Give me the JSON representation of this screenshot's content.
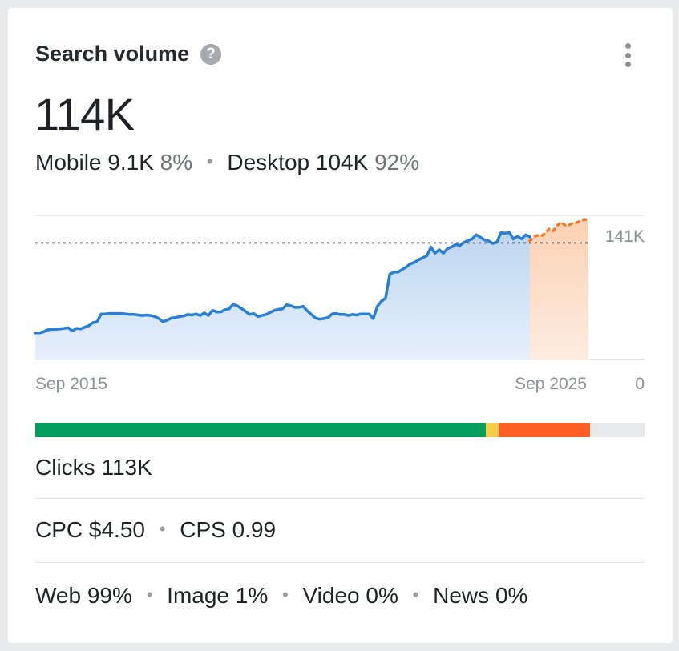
{
  "widget": {
    "title": "Search volume",
    "help_icon": "question-circle-icon",
    "menu_icon": "more-vertical-icon",
    "volume": "114K",
    "mobile_label": "Mobile",
    "mobile_value": "9.1K",
    "mobile_percent": "8%",
    "desktop_label": "Desktop",
    "desktop_value": "104K",
    "desktop_percent": "92%"
  },
  "chart_data": {
    "type": "area",
    "x_start_label": "Sep 2015",
    "x_end_label": "Sep 2025",
    "y_max_label": "141K",
    "y_min_label": "0",
    "ylim": [
      0,
      141000
    ],
    "reference_line": 114000,
    "series": [
      {
        "values": [
          26000,
          26000,
          27000,
          29000,
          29500,
          29500,
          30000,
          30500,
          31000,
          28000,
          30500,
          30000,
          31500,
          33000,
          36000,
          37000,
          44500,
          44500,
          45000,
          45000,
          45000,
          45000,
          44500,
          44000,
          44000,
          43500,
          43000,
          43500,
          43000,
          42000,
          40000,
          37000,
          38500,
          40500,
          41000,
          42000,
          42500,
          44000,
          43500,
          44500,
          43000,
          45500,
          43000,
          48000,
          46500,
          46500,
          48500,
          49500,
          54000,
          52500,
          50000,
          47000,
          44000,
          45000,
          42000,
          43000,
          44000,
          46000,
          48000,
          49000,
          49500,
          53500,
          52500,
          51000,
          51000,
          52000,
          47500,
          44000,
          40500,
          39500,
          40000,
          41000,
          44500,
          45000,
          44000,
          44000,
          43000,
          44000,
          43500,
          44500,
          44500,
          44500,
          40000,
          52000,
          57000,
          60000,
          83500,
          85500,
          85500,
          88000,
          90500,
          93500,
          95000,
          97500,
          99500,
          101500,
          110000,
          104000,
          107500,
          104000,
          108500,
          110000,
          112500,
          111500,
          114500,
          116500,
          118000,
          122000,
          119500,
          117000,
          116000,
          113500,
          115000,
          124000,
          123500,
          124500,
          118000,
          120500,
          118000,
          122000,
          120000
        ],
        "forecast": [
          116000,
          120500,
          121500,
          121000,
          123500,
          128000,
          126000,
          131000,
          134500,
          131500,
          131500,
          133500,
          134000,
          135500,
          137000,
          136500
        ]
      }
    ]
  },
  "kd_bar": [
    {
      "color": "#02a060",
      "percent": 74
    },
    {
      "color": "#f6cc48",
      "percent": 2
    },
    {
      "color": "#ff5f24",
      "percent": 15
    },
    {
      "color": "#e8e9eb",
      "percent": 9
    }
  ],
  "clicks": {
    "label": "Clicks",
    "value": "113K"
  },
  "cpc": {
    "label": "CPC",
    "value": "$4.50"
  },
  "cps": {
    "label": "CPS",
    "value": "0.99"
  },
  "sources": [
    {
      "label": "Web",
      "value": "99%"
    },
    {
      "label": "Image",
      "value": "1%"
    },
    {
      "label": "Video",
      "value": "0%"
    },
    {
      "label": "News",
      "value": "0%"
    }
  ]
}
